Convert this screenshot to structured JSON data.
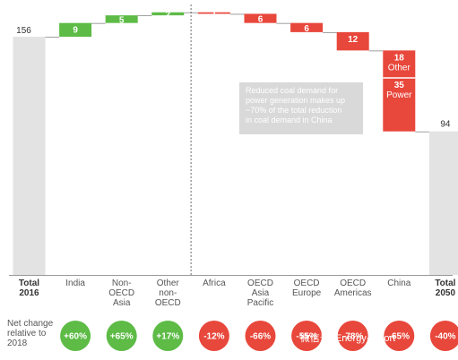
{
  "chart_data": {
    "type": "bar",
    "subtype": "waterfall",
    "start": {
      "label_line1": "Total",
      "label_line2": "2016",
      "value": 156
    },
    "end": {
      "label_line1": "Total",
      "label_line2": "2050",
      "value": 94
    },
    "steps": [
      {
        "label": [
          "India"
        ],
        "change": 9,
        "value_label": "9",
        "net_change": "+60%",
        "direction": "increase"
      },
      {
        "label": [
          "Non-",
          "OECD",
          "Asia"
        ],
        "change": 5,
        "value_label": "5",
        "net_change": "+65%",
        "direction": "increase"
      },
      {
        "label": [
          "Other",
          "non-",
          "OECD"
        ],
        "change": 2,
        "value_label": "2",
        "net_change": "+17%",
        "direction": "increase"
      },
      {
        "label": [
          "Africa"
        ],
        "change": -1,
        "value_label": "1",
        "net_change": "-12%",
        "direction": "decrease"
      },
      {
        "label": [
          "OECD",
          "Asia",
          "Pacific"
        ],
        "change": -6,
        "value_label": "6",
        "net_change": "-66%",
        "direction": "decrease"
      },
      {
        "label": [
          "OECD",
          "Europe"
        ],
        "change": -6,
        "value_label": "6",
        "net_change": "-55%",
        "direction": "decrease"
      },
      {
        "label": [
          "OECD",
          "Americas"
        ],
        "change": -12,
        "value_label": "12",
        "net_change": "-78%",
        "direction": "decrease"
      },
      {
        "label": [
          "China"
        ],
        "change": -53,
        "net_change": "-65%",
        "direction": "decrease",
        "segments": [
          {
            "value": 18,
            "value_label": "18",
            "name": "Other"
          },
          {
            "value": 35,
            "value_label": "35",
            "name": "Power"
          }
        ]
      }
    ],
    "end_net_change": "-40%",
    "net_change_label": [
      "Net change",
      "relative to",
      "2018"
    ],
    "annotation": [
      "Reduced coal demand for",
      "power generation makes up",
      "~70% of the total reduction",
      "in coal demand in China"
    ],
    "colors": {
      "increase": "#5dbb46",
      "decrease": "#e8473b",
      "total": "#e3e3e3",
      "annotation": "#d9d9d9"
    }
  },
  "watermark": "微信号: Energy-report"
}
